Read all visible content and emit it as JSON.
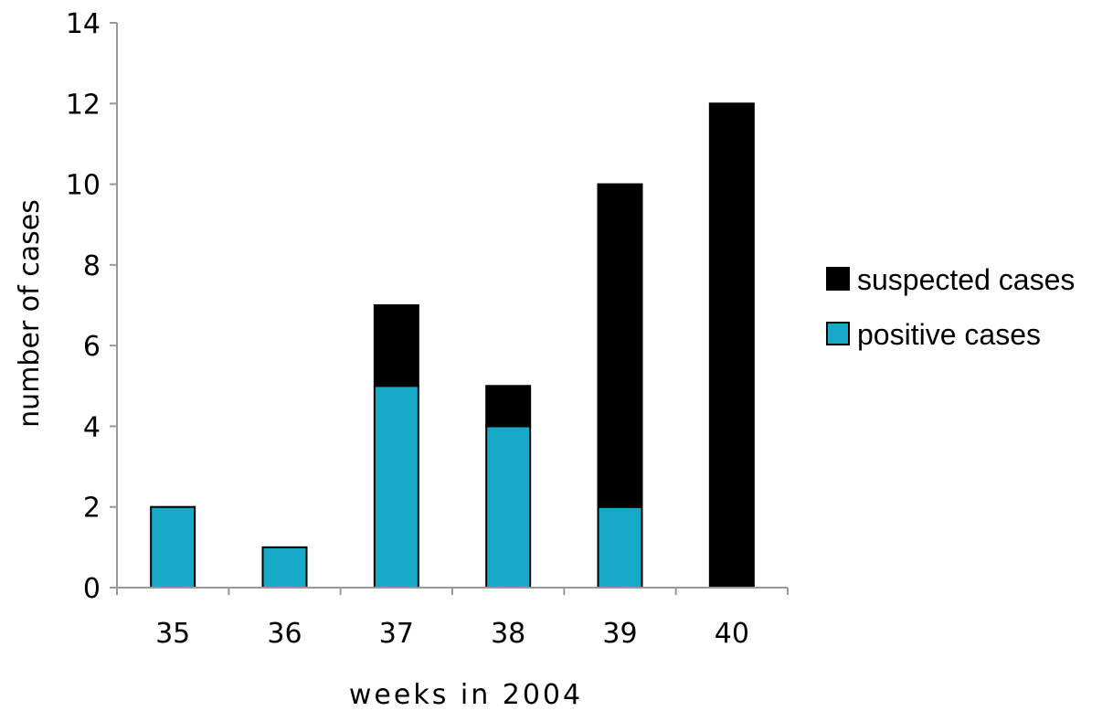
{
  "chart_data": {
    "type": "bar",
    "stacked": true,
    "categories": [
      "35",
      "36",
      "37",
      "38",
      "39",
      "40"
    ],
    "series": [
      {
        "name": "positive cases",
        "values": [
          2,
          1,
          5,
          4,
          2,
          0
        ],
        "color": "#18a8c8"
      },
      {
        "name": "suspected cases",
        "values": [
          0,
          0,
          2,
          1,
          8,
          12
        ],
        "color": "#000000"
      }
    ],
    "title": "",
    "xlabel": "weeks in 2004",
    "ylabel": "number of cases",
    "ylim": [
      0,
      14
    ],
    "yticks": [
      "0",
      "2",
      "4",
      "6",
      "8",
      "10",
      "12",
      "14"
    ],
    "grid": false,
    "legend": {
      "placement": "right",
      "entries": [
        "suspected cases",
        "positive cases"
      ]
    }
  }
}
